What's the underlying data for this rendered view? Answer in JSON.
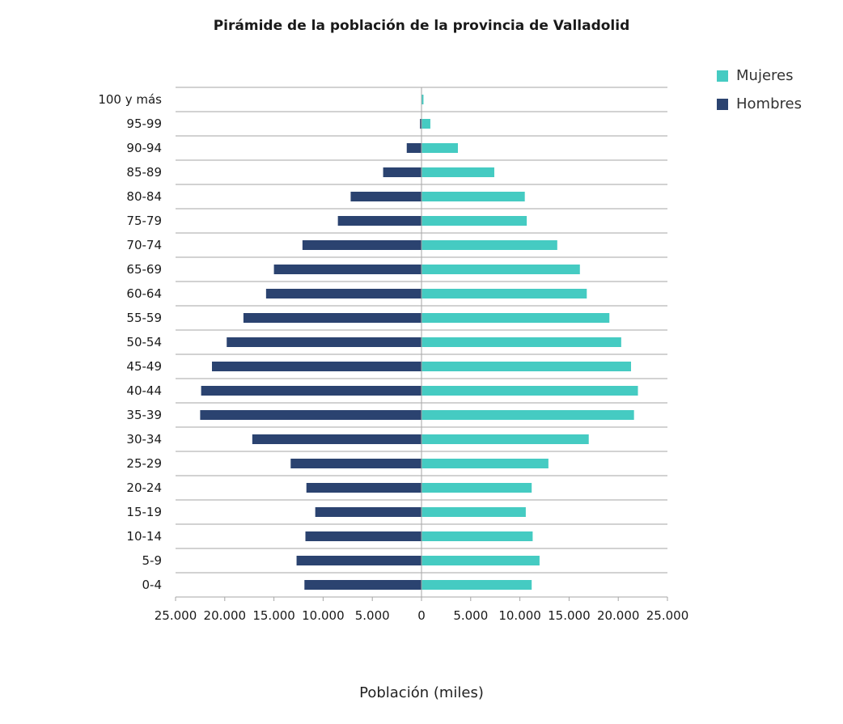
{
  "chart_data": {
    "type": "bar",
    "orientation": "horizontal",
    "layout": "population-pyramid",
    "title": "Pirámide de la población de la provincia de Valladolid",
    "xlabel": "Población (miles)",
    "ylabel": "",
    "xlim": [
      -25000,
      25000
    ],
    "x_ticks": [
      -25000,
      -20000,
      -15000,
      -10000,
      -5000,
      0,
      5000,
      10000,
      15000,
      20000,
      25000
    ],
    "x_tick_labels": [
      "25.000",
      "20.000",
      "15.000",
      "10.000",
      "5.000",
      "0",
      "5.000",
      "10.000",
      "15.000",
      "20.000",
      "25.000"
    ],
    "grid": "horizontal",
    "legend_position": "top-right",
    "categories": [
      "100 y más",
      "95-99",
      "90-94",
      "85-89",
      "80-84",
      "75-79",
      "70-74",
      "65-69",
      "60-64",
      "55-59",
      "50-54",
      "45-49",
      "40-44",
      "35-39",
      "30-34",
      "25-29",
      "20-24",
      "15-19",
      "10-14",
      "5-9",
      "0-4"
    ],
    "series": [
      {
        "name": "Mujeres",
        "color": "#45cbc2",
        "values": [
          200,
          900,
          3700,
          7400,
          10500,
          10700,
          13800,
          16100,
          16800,
          19100,
          20300,
          21300,
          22000,
          21600,
          17000,
          12900,
          11200,
          10600,
          11300,
          12000,
          11200
        ]
      },
      {
        "name": "Hombres",
        "color": "#2b4370",
        "values": [
          30,
          150,
          1500,
          3900,
          7200,
          8500,
          12100,
          15000,
          15800,
          18100,
          19800,
          21300,
          22400,
          22500,
          17200,
          13300,
          11700,
          10800,
          11800,
          12700,
          11900
        ]
      }
    ]
  }
}
